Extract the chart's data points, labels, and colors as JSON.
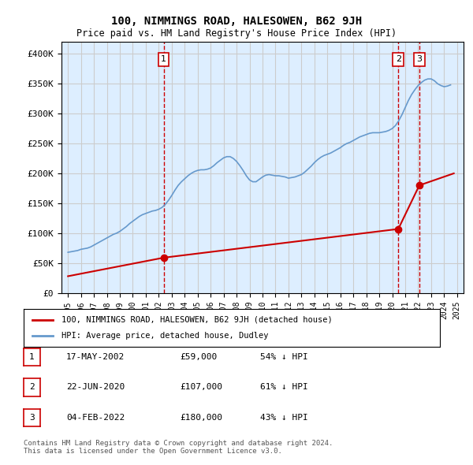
{
  "title": "100, NIMMINGS ROAD, HALESOWEN, B62 9JH",
  "subtitle": "Price paid vs. HM Land Registry's House Price Index (HPI)",
  "x_start_year": 1995,
  "x_end_year": 2025,
  "ylim": [
    0,
    420000
  ],
  "yticks": [
    0,
    50000,
    100000,
    150000,
    200000,
    250000,
    300000,
    350000,
    400000
  ],
  "ytick_labels": [
    "£0",
    "£50K",
    "£100K",
    "£150K",
    "£200K",
    "£250K",
    "£300K",
    "£350K",
    "£400K"
  ],
  "sale_color": "#cc0000",
  "hpi_color": "#6699cc",
  "grid_color": "#cccccc",
  "bg_color": "#ddeeff",
  "plot_bg_color": "#ddeeff",
  "marker_color": "#cc0000",
  "dashed_line_color": "#cc0000",
  "legend_label_sale": "100, NIMMINGS ROAD, HALESOWEN, B62 9JH (detached house)",
  "legend_label_hpi": "HPI: Average price, detached house, Dudley",
  "transactions": [
    {
      "id": 1,
      "date": "17-MAY-2002",
      "year": 2002.38,
      "price": 59000,
      "pct": "54% ↓ HPI"
    },
    {
      "id": 2,
      "date": "22-JUN-2020",
      "year": 2020.47,
      "price": 107000,
      "pct": "61% ↓ HPI"
    },
    {
      "id": 3,
      "date": "04-FEB-2022",
      "year": 2022.09,
      "price": 180000,
      "pct": "43% ↓ HPI"
    }
  ],
  "footer": "Contains HM Land Registry data © Crown copyright and database right 2024.\nThis data is licensed under the Open Government Licence v3.0.",
  "hpi_data": {
    "years": [
      1995.0,
      1995.25,
      1995.5,
      1995.75,
      1996.0,
      1996.25,
      1996.5,
      1996.75,
      1997.0,
      1997.25,
      1997.5,
      1997.75,
      1998.0,
      1998.25,
      1998.5,
      1998.75,
      1999.0,
      1999.25,
      1999.5,
      1999.75,
      2000.0,
      2000.25,
      2000.5,
      2000.75,
      2001.0,
      2001.25,
      2001.5,
      2001.75,
      2002.0,
      2002.25,
      2002.5,
      2002.75,
      2003.0,
      2003.25,
      2003.5,
      2003.75,
      2004.0,
      2004.25,
      2004.5,
      2004.75,
      2005.0,
      2005.25,
      2005.5,
      2005.75,
      2006.0,
      2006.25,
      2006.5,
      2006.75,
      2007.0,
      2007.25,
      2007.5,
      2007.75,
      2008.0,
      2008.25,
      2008.5,
      2008.75,
      2009.0,
      2009.25,
      2009.5,
      2009.75,
      2010.0,
      2010.25,
      2010.5,
      2010.75,
      2011.0,
      2011.25,
      2011.5,
      2011.75,
      2012.0,
      2012.25,
      2012.5,
      2012.75,
      2013.0,
      2013.25,
      2013.5,
      2013.75,
      2014.0,
      2014.25,
      2014.5,
      2014.75,
      2015.0,
      2015.25,
      2015.5,
      2015.75,
      2016.0,
      2016.25,
      2016.5,
      2016.75,
      2017.0,
      2017.25,
      2017.5,
      2017.75,
      2018.0,
      2018.25,
      2018.5,
      2018.75,
      2019.0,
      2019.25,
      2019.5,
      2019.75,
      2020.0,
      2020.25,
      2020.5,
      2020.75,
      2021.0,
      2021.25,
      2021.5,
      2021.75,
      2022.0,
      2022.25,
      2022.5,
      2022.75,
      2023.0,
      2023.25,
      2023.5,
      2023.75,
      2024.0,
      2024.25,
      2024.5
    ],
    "values": [
      68000,
      69000,
      70000,
      71000,
      73000,
      74000,
      75000,
      77000,
      80000,
      83000,
      86000,
      89000,
      92000,
      95000,
      98000,
      100000,
      103000,
      107000,
      111000,
      116000,
      120000,
      124000,
      128000,
      131000,
      133000,
      135000,
      137000,
      138000,
      140000,
      143000,
      148000,
      155000,
      163000,
      172000,
      180000,
      186000,
      191000,
      196000,
      200000,
      203000,
      205000,
      206000,
      206000,
      207000,
      209000,
      213000,
      218000,
      222000,
      226000,
      228000,
      228000,
      225000,
      220000,
      213000,
      205000,
      196000,
      189000,
      186000,
      186000,
      190000,
      194000,
      197000,
      198000,
      197000,
      196000,
      196000,
      195000,
      194000,
      192000,
      193000,
      194000,
      196000,
      198000,
      202000,
      207000,
      212000,
      218000,
      223000,
      227000,
      230000,
      232000,
      234000,
      237000,
      240000,
      243000,
      247000,
      250000,
      252000,
      255000,
      258000,
      261000,
      263000,
      265000,
      267000,
      268000,
      268000,
      268000,
      269000,
      270000,
      272000,
      275000,
      280000,
      288000,
      298000,
      310000,
      322000,
      332000,
      340000,
      347000,
      352000,
      356000,
      358000,
      358000,
      355000,
      350000,
      347000,
      345000,
      346000,
      348000
    ]
  },
  "sale_data": {
    "years": [
      1995.0,
      2002.38,
      2020.47,
      2022.09,
      2024.75
    ],
    "values": [
      28000,
      59000,
      107000,
      180000,
      200000
    ]
  }
}
